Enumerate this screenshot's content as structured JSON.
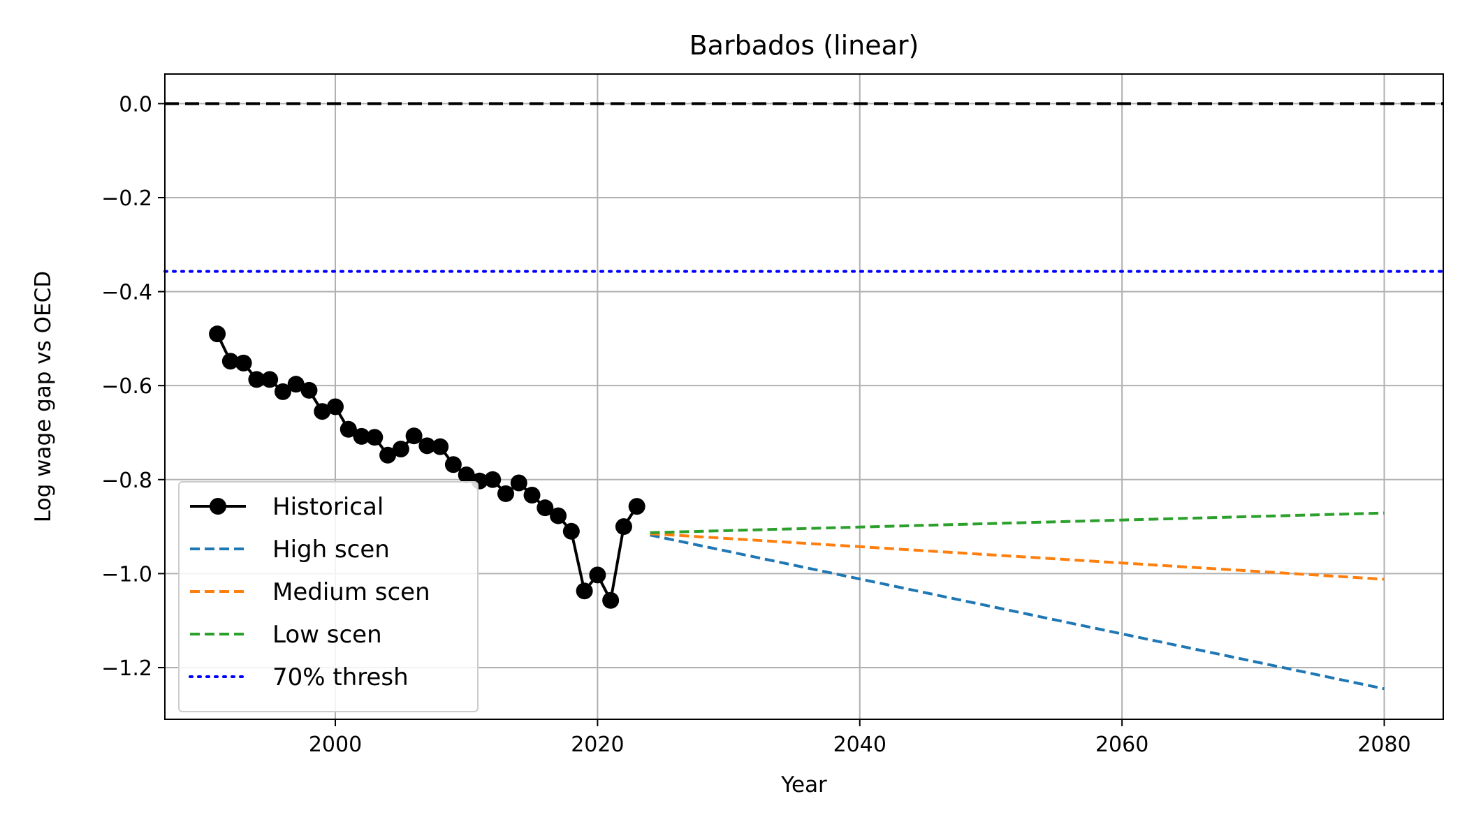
{
  "chart_data": {
    "type": "line",
    "title": "Barbados (linear)",
    "xlabel": "Year",
    "ylabel": "Log wage gap vs OECD",
    "xlim": [
      1987,
      2084.5
    ],
    "ylim": [
      -1.31,
      0.063
    ],
    "x_ticks": [
      2000,
      2020,
      2040,
      2060,
      2080
    ],
    "y_ticks": [
      0.0,
      -0.2,
      -0.4,
      -0.6,
      -0.8,
      -1.0,
      -1.2
    ],
    "x_tick_labels": [
      "2000",
      "2020",
      "2040",
      "2060",
      "2080"
    ],
    "y_tick_labels": [
      "0.0",
      "−0.2",
      "−0.4",
      "−0.6",
      "−0.8",
      "−1.0",
      "−1.2"
    ],
    "grid": true,
    "legend_position": "lower-left",
    "reference_lines": [
      {
        "y": 0.0,
        "color": "#000000",
        "style": "dashed"
      },
      {
        "y": -0.357,
        "color": "#0000ff",
        "style": "dotted",
        "legend": "70% thresh"
      }
    ],
    "series": [
      {
        "name": "Historical",
        "color": "#000000",
        "style": "solid-marker",
        "x": [
          1991,
          1992,
          1993,
          1994,
          1995,
          1996,
          1997,
          1998,
          1999,
          2000,
          2001,
          2002,
          2003,
          2004,
          2005,
          2006,
          2007,
          2008,
          2009,
          2010,
          2011,
          2012,
          2013,
          2014,
          2015,
          2016,
          2017,
          2018,
          2019,
          2020,
          2021,
          2022,
          2023
        ],
        "y": [
          -0.49,
          -0.548,
          -0.552,
          -0.587,
          -0.587,
          -0.613,
          -0.597,
          -0.61,
          -0.655,
          -0.645,
          -0.693,
          -0.708,
          -0.71,
          -0.748,
          -0.735,
          -0.707,
          -0.728,
          -0.73,
          -0.768,
          -0.79,
          -0.803,
          -0.8,
          -0.83,
          -0.807,
          -0.833,
          -0.86,
          -0.877,
          -0.91,
          -1.037,
          -1.003,
          -1.057,
          -0.9,
          -0.857
        ]
      },
      {
        "name": "High scen",
        "color": "#1f77b4",
        "style": "dashed",
        "x": [
          2024,
          2080
        ],
        "y": [
          -0.918,
          -1.245
        ]
      },
      {
        "name": "Medium scen",
        "color": "#ff7f0e",
        "style": "dashed",
        "x": [
          2024,
          2080
        ],
        "y": [
          -0.915,
          -1.012
        ]
      },
      {
        "name": "Low scen",
        "color": "#2ca02c",
        "style": "dashed",
        "x": [
          2024,
          2080
        ],
        "y": [
          -0.913,
          -0.871
        ]
      }
    ]
  }
}
